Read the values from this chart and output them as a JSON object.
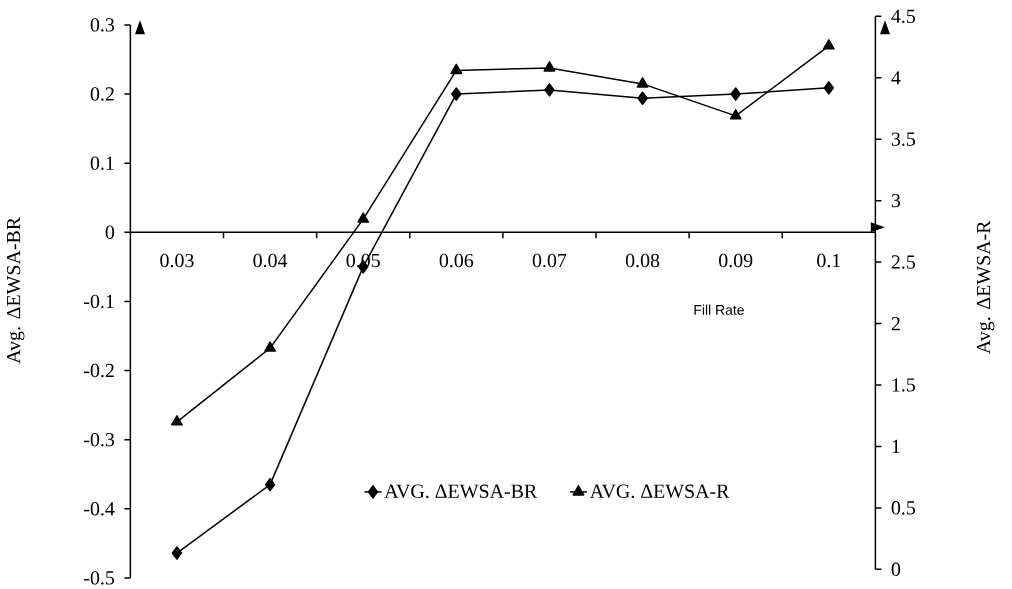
{
  "chart_data": {
    "type": "line",
    "categories": [
      "0.03",
      "0.04",
      "0.05",
      "0.06",
      "0.07",
      "0.08",
      "0.09",
      "0.1"
    ],
    "xlabel": "Fill Rate",
    "ylabel": "Avg. ΔEWSA-BR",
    "y2label": "Avg. ΔEWSA-R",
    "ylim": [
      -0.5,
      0.3
    ],
    "yticks": [
      -0.5,
      -0.4,
      -0.3,
      -0.2,
      -0.1,
      0,
      0.1,
      0.2,
      0.3
    ],
    "y2lim": [
      0,
      4.5
    ],
    "y2ticks": [
      0,
      0.5,
      1,
      1.5,
      2,
      2.5,
      3,
      3.5,
      4,
      4.5
    ],
    "legend": "bottom",
    "line_style": "solid",
    "series": [
      {
        "name": "AVG. ΔEWSA-BR",
        "color": "#000000",
        "marker": "diamond",
        "values": [
          -0.464,
          -0.365,
          -0.05,
          0.2,
          0.206,
          0.194,
          0.2,
          0.209
        ]
      },
      {
        "name": "AVG. ΔEWSA-R",
        "color": "#000000",
        "marker": "triangle",
        "axis": "y2",
        "values": [
          1.2,
          1.8,
          2.85,
          4.06,
          4.08,
          3.95,
          3.69,
          4.26
        ]
      }
    ]
  }
}
